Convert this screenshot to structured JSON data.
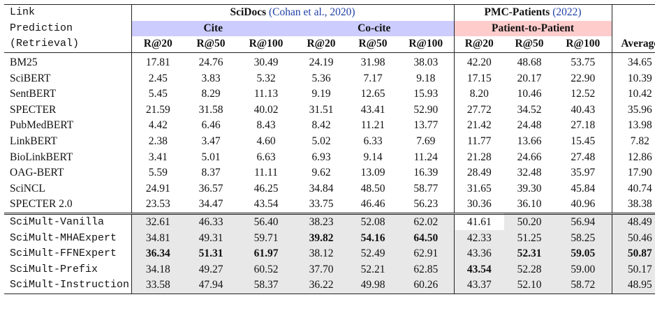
{
  "header": {
    "task_lines": [
      "Link",
      "Prediction",
      "(Retrieval)"
    ],
    "scidocs_name": "SciDocs",
    "scidocs_cite": "(Cohan et al., 2020)",
    "pmc_name": "PMC-Patients",
    "pmc_cite": "(2022)",
    "cite_label": "Cite",
    "cocite_label": "Co-cite",
    "p2p_label": "Patient-to-Patient",
    "metrics": [
      "R@20",
      "R@50",
      "R@100",
      "R@20",
      "R@50",
      "R@100",
      "R@20",
      "R@50",
      "R@100"
    ],
    "average_label": "Average"
  },
  "colors": {
    "cite": "#ccccff",
    "patient": "#ffcccc",
    "ours": "#e8e8e8"
  },
  "baselines": [
    {
      "name": "BM25",
      "values": [
        "17.81",
        "24.76",
        "30.49",
        "24.19",
        "31.98",
        "38.03",
        "42.20",
        "48.68",
        "53.75",
        "34.65"
      ]
    },
    {
      "name": "SciBERT",
      "values": [
        "2.45",
        "3.83",
        "5.32",
        "5.36",
        "7.17",
        "9.18",
        "17.15",
        "20.17",
        "22.90",
        "10.39"
      ]
    },
    {
      "name": "SentBERT",
      "values": [
        "5.45",
        "8.29",
        "11.13",
        "9.19",
        "12.65",
        "15.93",
        "8.20",
        "10.46",
        "12.52",
        "10.42"
      ]
    },
    {
      "name": "SPECTER",
      "values": [
        "21.59",
        "31.58",
        "40.02",
        "31.51",
        "43.41",
        "52.90",
        "27.72",
        "34.52",
        "40.43",
        "35.96"
      ]
    },
    {
      "name": "PubMedBERT",
      "values": [
        "4.42",
        "6.46",
        "8.43",
        "8.42",
        "11.21",
        "13.77",
        "21.42",
        "24.48",
        "27.18",
        "13.98"
      ]
    },
    {
      "name": "LinkBERT",
      "values": [
        "2.38",
        "3.47",
        "4.60",
        "5.02",
        "6.33",
        "7.69",
        "11.77",
        "13.66",
        "15.45",
        "7.82"
      ]
    },
    {
      "name": "BioLinkBERT",
      "values": [
        "3.41",
        "5.01",
        "6.63",
        "6.93",
        "9.14",
        "11.24",
        "21.28",
        "24.66",
        "27.48",
        "12.86"
      ]
    },
    {
      "name": "OAG-BERT",
      "values": [
        "5.59",
        "8.37",
        "11.11",
        "9.62",
        "13.09",
        "16.39",
        "28.49",
        "32.48",
        "35.97",
        "17.90"
      ]
    },
    {
      "name": "SciNCL",
      "values": [
        "24.91",
        "36.57",
        "46.25",
        "34.84",
        "48.50",
        "58.77",
        "31.65",
        "39.30",
        "45.84",
        "40.74"
      ]
    },
    {
      "name": "SPECTER 2.0",
      "values": [
        "23.53",
        "34.47",
        "43.54",
        "33.75",
        "46.46",
        "56.23",
        "30.36",
        "36.10",
        "40.96",
        "38.38"
      ]
    }
  ],
  "ours": [
    {
      "name": "SciMult-Vanilla",
      "values": [
        "32.61",
        "46.33",
        "56.40",
        "38.23",
        "52.08",
        "62.02",
        "41.61",
        "50.20",
        "56.94",
        "48.49"
      ],
      "bold": []
    },
    {
      "name": "SciMult-MHAExpert",
      "values": [
        "34.81",
        "49.31",
        "59.71",
        "39.82",
        "54.16",
        "64.50",
        "42.33",
        "51.25",
        "58.25",
        "50.46"
      ],
      "bold": [
        3,
        4,
        5
      ]
    },
    {
      "name": "SciMult-FFNExpert",
      "values": [
        "36.34",
        "51.31",
        "61.97",
        "38.12",
        "52.49",
        "62.91",
        "43.36",
        "52.31",
        "59.05",
        "50.87"
      ],
      "bold": [
        0,
        1,
        2,
        7,
        8,
        9
      ]
    },
    {
      "name": "SciMult-Prefix",
      "values": [
        "34.18",
        "49.27",
        "60.52",
        "37.70",
        "52.21",
        "62.85",
        "43.54",
        "52.28",
        "59.00",
        "50.17"
      ],
      "bold": [
        6
      ]
    },
    {
      "name": "SciMult-Instruction",
      "values": [
        "33.58",
        "47.94",
        "58.37",
        "36.22",
        "49.98",
        "60.26",
        "43.37",
        "52.10",
        "58.72",
        "48.95"
      ],
      "bold": []
    }
  ]
}
